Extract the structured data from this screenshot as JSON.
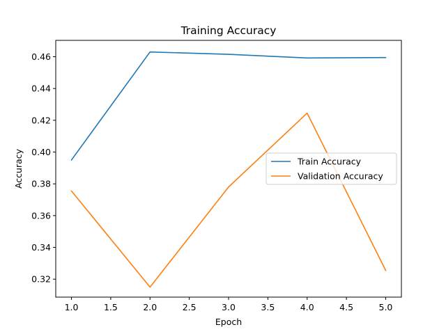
{
  "chart_data": {
    "type": "line",
    "title": "Training Accuracy",
    "xlabel": "Epoch",
    "ylabel": "Accuracy",
    "xlim": [
      0.8,
      5.2
    ],
    "ylim": [
      0.3087,
      0.4703
    ],
    "xticks": [
      1.0,
      1.5,
      2.0,
      2.5,
      3.0,
      3.5,
      4.0,
      4.5,
      5.0
    ],
    "xtick_labels": [
      "1.0",
      "1.5",
      "2.0",
      "2.5",
      "3.0",
      "3.5",
      "4.0",
      "4.5",
      "5.0"
    ],
    "yticks": [
      0.32,
      0.34,
      0.36,
      0.38,
      0.4,
      0.42,
      0.44,
      0.46
    ],
    "ytick_labels": [
      "0.32",
      "0.34",
      "0.36",
      "0.38",
      "0.40",
      "0.42",
      "0.44",
      "0.46"
    ],
    "grid": false,
    "legend_position": "center-right",
    "x": [
      1,
      2,
      3,
      4,
      5
    ],
    "series": [
      {
        "name": "Train Accuracy",
        "color": "#1f77b4",
        "values": [
          0.395,
          0.463,
          0.4615,
          0.4592,
          0.4595
        ]
      },
      {
        "name": "Validation Accuracy",
        "color": "#ff7f0e",
        "values": [
          0.3755,
          0.315,
          0.378,
          0.4245,
          0.3255
        ]
      }
    ]
  }
}
